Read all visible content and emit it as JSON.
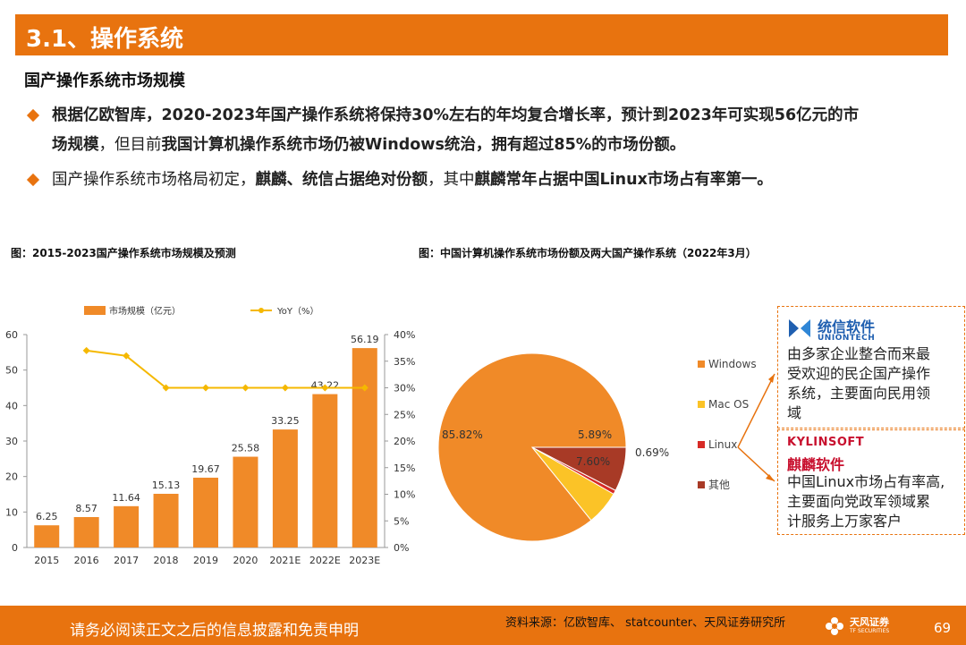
{
  "header": {
    "title": "3.1、操作系统"
  },
  "subheading": "国产操作系统市场规模",
  "bullets": {
    "b1_p1": "根据亿欧智库，2020-2023年国产操作系统将保持30%左右的年均复合增长率，预计到2023年可实现56亿元的市",
    "b1_p2": "场规模",
    "b1_p3": "，但目前",
    "b1_p4": "我国计算机操作系统市场仍被Windows统治，拥有超过85%的市场份额。",
    "b2_p1": "国产操作系统市场格局初定，",
    "b2_p2": "麒麟、统信占据绝对份额",
    "b2_p3": "，其中",
    "b2_p4": "麒麟常年占据中国Linux市场占有率第一。"
  },
  "captions": {
    "left": "图：2015-2023国产操作系统市场规模及预测",
    "right": "图：中国计算机操作系统市场份额及两大国产操作系统（2022年3月）"
  },
  "chart_data": [
    {
      "type": "bar",
      "categories": [
        "2015",
        "2016",
        "2017",
        "2018",
        "2019",
        "2020",
        "2021E",
        "2022E",
        "2023E"
      ],
      "series": [
        {
          "name": "市场规模（亿元）",
          "type": "bar",
          "axis": "left",
          "values": [
            6.25,
            8.57,
            11.64,
            15.13,
            19.67,
            25.58,
            33.25,
            43.22,
            56.19
          ],
          "labels": [
            "6.25",
            "8.57",
            "11.64",
            "15.13",
            "19.67",
            "25.58",
            "33.25",
            "43.22",
            "56.19"
          ]
        },
        {
          "name": "YoY（%）",
          "type": "line",
          "axis": "right",
          "values": [
            null,
            37,
            36,
            30,
            30,
            30,
            30,
            30,
            30
          ]
        }
      ],
      "ylim": [
        0,
        60
      ],
      "yticks": [
        "0",
        "10",
        "20",
        "30",
        "40",
        "50",
        "60"
      ],
      "y2lim": [
        0,
        40
      ],
      "y2ticks": [
        "0%",
        "5%",
        "10%",
        "15%",
        "20%",
        "25%",
        "30%",
        "35%",
        "40%"
      ],
      "legend_position": "top",
      "colors": {
        "bar": "#F08A28",
        "line": "#F5B800"
      }
    },
    {
      "type": "pie",
      "labels": [
        "Windows",
        "Mac OS",
        "Linux",
        "其他"
      ],
      "values": [
        85.82,
        5.89,
        0.69,
        7.6
      ],
      "value_labels": [
        "85.82%",
        "5.89%",
        "0.69%",
        "7.60%"
      ],
      "colors": [
        "#F08A28",
        "#FBC327",
        "#D72B26",
        "#A83A26"
      ],
      "legend_position": "right"
    }
  ],
  "vendors": {
    "uniontech": {
      "name": "统信软件",
      "name_en": "UNIONTECH",
      "desc": [
        "由多家企业整合而来最",
        "受欢迎的民企国产操作",
        "系统，主要面向民用领",
        "域"
      ]
    },
    "kylin": {
      "name_en": "KYLINSOFT",
      "name": "麒麟软件",
      "desc": [
        "中国Linux市场占有率高,",
        "主要面向党政军领域累",
        "计服务上万家客户"
      ]
    }
  },
  "footer": {
    "disclaimer": "请务必阅读正文之后的信息披露和免责申明",
    "source": "资料来源：亿欧智库、 statcounter、天风证券研究所",
    "logo_text": "天风证券",
    "logo_sub": "TF SECURITIES",
    "page": "69"
  }
}
